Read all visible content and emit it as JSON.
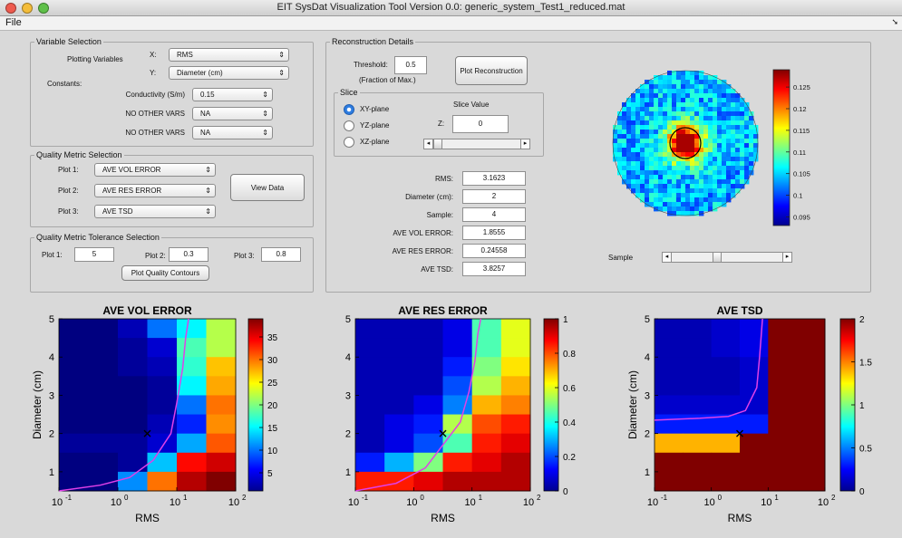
{
  "window": {
    "title": "EIT SysDat Visualization Tool Version 0.0: generic_system_Test1_reduced.mat",
    "buttons": [
      "close",
      "minimize",
      "zoom"
    ],
    "colors": {
      "close": "#ee5b4f",
      "minimize": "#f4bd3a",
      "zoom": "#5fc049"
    }
  },
  "menu": {
    "file": "File",
    "overflow_icon": "menu-arrow-icon"
  },
  "variable_selection": {
    "title": "Variable Selection",
    "plotting_variables": "Plotting Variables",
    "x_label": "X:",
    "x_value": "RMS",
    "y_label": "Y:",
    "y_value": "Diameter (cm)",
    "constants_label": "Constants:",
    "constants": [
      {
        "label": "Conductivity (S/m)",
        "value": "0.15"
      },
      {
        "label": "NO OTHER VARS",
        "value": "NA"
      },
      {
        "label": "NO OTHER VARS",
        "value": "NA"
      }
    ]
  },
  "quality_metric_selection": {
    "title": "Quality Metric Selection",
    "plots": [
      {
        "label": "Plot 1:",
        "value": "AVE VOL ERROR"
      },
      {
        "label": "Plot 2:",
        "value": "AVE RES ERROR"
      },
      {
        "label": "Plot 3:",
        "value": "AVE TSD"
      }
    ],
    "view_button": "View Data"
  },
  "tolerance_selection": {
    "title": "Quality Metric Tolerance Selection",
    "plots": [
      {
        "label": "Plot 1:",
        "value": "5"
      },
      {
        "label": "Plot 2:",
        "value": "0.3"
      },
      {
        "label": "Plot 3:",
        "value": "0.8"
      }
    ],
    "contours_button": "Plot Quality Contours"
  },
  "reconstruction": {
    "title": "Reconstruction Details",
    "threshold_label": "Threshold:",
    "threshold_value": "0.5",
    "threshold_note": "(Fraction of Max.)",
    "plot_button": "Plot Reconstruction",
    "slice_title": "Slice",
    "slice_options": [
      "XY-plane",
      "YZ-plane",
      "XZ-plane"
    ],
    "slice_selected": 0,
    "slice_value_label": "Slice Value",
    "z_label": "Z:",
    "z_value": "0",
    "slice_slider_pos": 0.0,
    "details": [
      {
        "label": "RMS:",
        "value": "3.1623"
      },
      {
        "label": "Diameter (cm):",
        "value": "2"
      },
      {
        "label": "Sample:",
        "value": "4"
      },
      {
        "label": "AVE VOL ERROR:",
        "value": "1.8555"
      },
      {
        "label": "AVE RES ERROR:",
        "value": "0.24558"
      },
      {
        "label": "AVE TSD:",
        "value": "3.8257"
      }
    ],
    "sample_label": "Sample",
    "sample_slider_pos": 0.4,
    "colorbar_ticks": [
      "0.125",
      "0.12",
      "0.115",
      "0.11",
      "0.105",
      "0.1",
      "0.095"
    ],
    "colorbar_range": [
      0.093,
      0.129
    ]
  },
  "chart_data": [
    {
      "type": "heatmap",
      "title": "AVE VOL ERROR",
      "xlabel": "RMS",
      "ylabel": "Diameter (cm)",
      "x_ticks": [
        "10",
        "10",
        "10",
        "10"
      ],
      "x_tick_exps": [
        "-1",
        "0",
        "1",
        "2"
      ],
      "y_ticks": [
        "1",
        "2",
        "3",
        "4",
        "5"
      ],
      "colorbar_ticks": [
        "35",
        "30",
        "25",
        "20",
        "15",
        "10",
        "5"
      ],
      "colorbar_tick_values": [
        35,
        30,
        25,
        20,
        15,
        10,
        5
      ],
      "clim": [
        1,
        39
      ],
      "xlim_log": [
        -1,
        2
      ],
      "ylim": [
        0.5,
        5
      ],
      "grid": {
        "cols": 6,
        "rows": 9
      },
      "values": [
        [
          1,
          1,
          3,
          10,
          15,
          22
        ],
        [
          1,
          1,
          2,
          4,
          18,
          22
        ],
        [
          1,
          1,
          2,
          3,
          17,
          27
        ],
        [
          1,
          1,
          1,
          2,
          15,
          28
        ],
        [
          1,
          1,
          1,
          2,
          10,
          30
        ],
        [
          1,
          1,
          1,
          3,
          7,
          29
        ],
        [
          2,
          2,
          2,
          4,
          12,
          31
        ],
        [
          1,
          1,
          2,
          13,
          34,
          36
        ],
        [
          1,
          1,
          11,
          30,
          37,
          39
        ]
      ],
      "contour": [
        [
          -1.0,
          0.5
        ],
        [
          -0.3,
          0.65
        ],
        [
          0.2,
          0.85
        ],
        [
          0.6,
          1.3
        ],
        [
          0.9,
          2.0
        ],
        [
          1.0,
          2.8
        ],
        [
          1.1,
          3.7
        ],
        [
          1.15,
          4.5
        ],
        [
          1.2,
          5.0
        ]
      ],
      "marker": [
        0.5,
        2
      ]
    },
    {
      "type": "heatmap",
      "title": "AVE RES ERROR",
      "xlabel": "RMS",
      "ylabel": "",
      "x_ticks": [
        "10",
        "10",
        "10",
        "10"
      ],
      "x_tick_exps": [
        "-1",
        "0",
        "1",
        "2"
      ],
      "y_ticks": [
        "1",
        "2",
        "3",
        "4",
        "5"
      ],
      "colorbar_ticks": [
        "1",
        "0.8",
        "0.6",
        "0.4",
        "0.2",
        "0"
      ],
      "colorbar_tick_values": [
        1,
        0.8,
        0.6,
        0.4,
        0.2,
        0
      ],
      "clim": [
        0,
        1
      ],
      "xlim_log": [
        -1,
        2
      ],
      "ylim": [
        0.5,
        5
      ],
      "grid": {
        "cols": 6,
        "rows": 9
      },
      "values": [
        [
          0.05,
          0.05,
          0.05,
          0.1,
          0.45,
          0.6
        ],
        [
          0.05,
          0.05,
          0.05,
          0.1,
          0.45,
          0.6
        ],
        [
          0.05,
          0.05,
          0.05,
          0.15,
          0.5,
          0.65
        ],
        [
          0.05,
          0.05,
          0.05,
          0.2,
          0.55,
          0.7
        ],
        [
          0.05,
          0.05,
          0.1,
          0.25,
          0.7,
          0.75
        ],
        [
          0.05,
          0.1,
          0.15,
          0.55,
          0.8,
          0.85
        ],
        [
          0.05,
          0.1,
          0.2,
          0.45,
          0.85,
          0.9
        ],
        [
          0.15,
          0.3,
          0.5,
          0.85,
          0.9,
          0.95
        ],
        [
          0.85,
          0.85,
          0.9,
          0.95,
          0.95,
          0.95
        ]
      ],
      "contour": [
        [
          -1.0,
          0.5
        ],
        [
          -0.3,
          0.7
        ],
        [
          0.2,
          1.1
        ],
        [
          0.5,
          1.7
        ],
        [
          0.8,
          2.3
        ],
        [
          0.95,
          3.1
        ],
        [
          1.05,
          3.9
        ],
        [
          1.1,
          4.6
        ],
        [
          1.15,
          5.0
        ]
      ],
      "marker": [
        0.5,
        2
      ]
    },
    {
      "type": "heatmap",
      "title": "AVE TSD",
      "xlabel": "RMS",
      "ylabel": "Diameter (cm)",
      "x_ticks": [
        "10",
        "10",
        "10",
        "10"
      ],
      "x_tick_exps": [
        "-1",
        "0",
        "1",
        "2"
      ],
      "y_ticks": [
        "1",
        "2",
        "3",
        "4",
        "5"
      ],
      "colorbar_ticks": [
        "2",
        "1.5",
        "1",
        "0.5",
        "0"
      ],
      "colorbar_tick_values": [
        2,
        1.5,
        1,
        0.5,
        0
      ],
      "clim": [
        0,
        2
      ],
      "xlim_log": [
        -1,
        2
      ],
      "ylim": [
        0.5,
        5
      ],
      "grid": {
        "cols": 6,
        "rows": 9
      },
      "values": [
        [
          0.1,
          0.1,
          0.15,
          0.2,
          2.0,
          2.0
        ],
        [
          0.1,
          0.1,
          0.15,
          0.2,
          2.0,
          2.0
        ],
        [
          0.1,
          0.1,
          0.1,
          0.15,
          2.0,
          2.0
        ],
        [
          0.1,
          0.1,
          0.1,
          0.15,
          2.0,
          2.0
        ],
        [
          0.15,
          0.15,
          0.15,
          0.15,
          2.0,
          2.0
        ],
        [
          0.3,
          0.3,
          0.3,
          0.3,
          2.0,
          2.0
        ],
        [
          1.4,
          1.4,
          1.4,
          2.0,
          2.0,
          2.0
        ],
        [
          2.0,
          2.0,
          2.0,
          2.0,
          2.0,
          2.0
        ],
        [
          2.0,
          2.0,
          2.0,
          2.0,
          2.0,
          2.0
        ]
      ],
      "contour": [
        [
          -1.0,
          2.35
        ],
        [
          -0.2,
          2.4
        ],
        [
          0.3,
          2.45
        ],
        [
          0.6,
          2.6
        ],
        [
          0.8,
          3.2
        ],
        [
          0.85,
          4.0
        ],
        [
          0.9,
          5.0
        ]
      ],
      "marker": [
        0.5,
        2
      ]
    }
  ]
}
